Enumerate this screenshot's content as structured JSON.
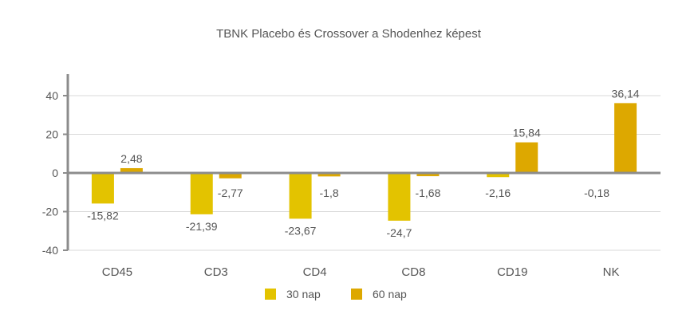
{
  "chart_data": {
    "type": "bar",
    "title": "TBNK Placebo és Crossover a Shodenhez képest",
    "categories": [
      "CD45",
      "CD3",
      "CD4",
      "CD8",
      "CD19",
      "NK"
    ],
    "series": [
      {
        "name": "30 nap",
        "color": "#E3C300",
        "values": [
          -15.82,
          -21.39,
          -23.67,
          -24.7,
          -2.16,
          -0.18
        ],
        "labels": [
          "-15,82",
          "-21,39",
          "-23,67",
          "-24,7",
          "-2,16",
          "-0,18"
        ]
      },
      {
        "name": "60 nap",
        "color": "#DDA800",
        "values": [
          2.48,
          -2.77,
          -1.8,
          -1.68,
          15.84,
          36.14
        ],
        "labels": [
          "2,48",
          "-2,77",
          "-1,8",
          "-1,68",
          "15,84",
          "36,14"
        ]
      }
    ],
    "ylim": [
      -40,
      40
    ],
    "yticks": [
      -40,
      -20,
      0,
      20,
      40
    ],
    "ytick_labels": [
      "-40",
      "-20",
      "0",
      "20",
      "40"
    ],
    "grid": true,
    "legend": "bottom"
  }
}
